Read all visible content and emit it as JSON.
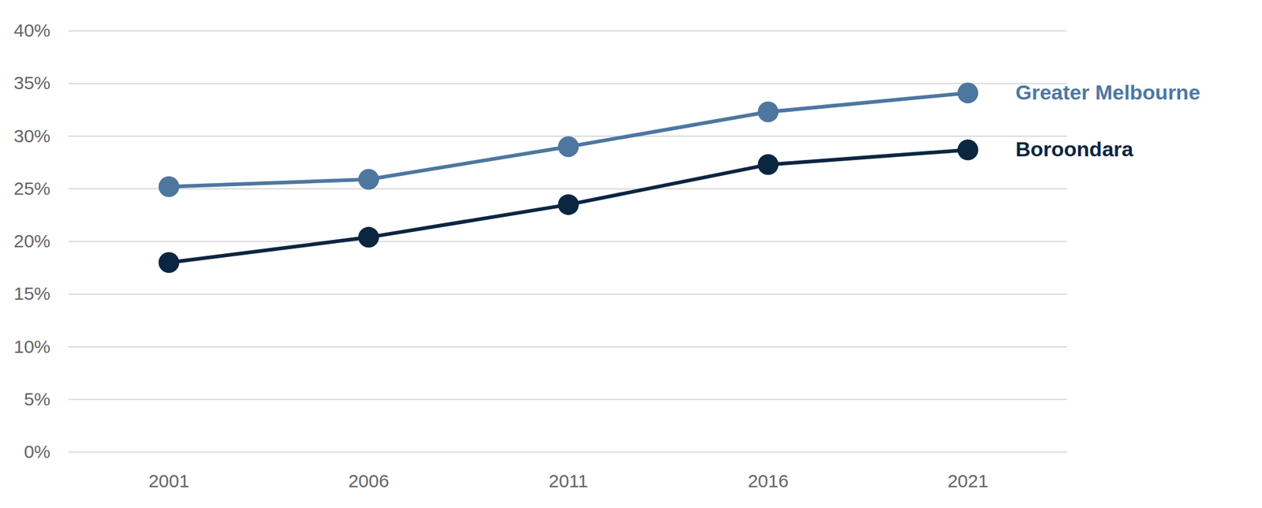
{
  "chart_data": {
    "type": "line",
    "x": [
      "2001",
      "2006",
      "2011",
      "2016",
      "2021"
    ],
    "series": [
      {
        "name": "Greater Melbourne",
        "color": "#4e77a0",
        "values": [
          25.2,
          25.9,
          29.0,
          32.3,
          34.1
        ]
      },
      {
        "name": "Boroondara",
        "color": "#0b2641",
        "values": [
          18.0,
          20.4,
          23.5,
          27.3,
          28.7
        ]
      }
    ],
    "ylim": [
      0,
      40
    ],
    "yticks": [
      {
        "value": 0,
        "label": "0%"
      },
      {
        "value": 5,
        "label": "5%"
      },
      {
        "value": 10,
        "label": "10%"
      },
      {
        "value": 15,
        "label": "15%"
      },
      {
        "value": 20,
        "label": "20%"
      },
      {
        "value": 25,
        "label": "25%"
      },
      {
        "value": 30,
        "label": "30%"
      },
      {
        "value": 35,
        "label": "35%"
      },
      {
        "value": 40,
        "label": "40%"
      }
    ],
    "grid": true,
    "marker": "circle",
    "line_style": "solid"
  }
}
